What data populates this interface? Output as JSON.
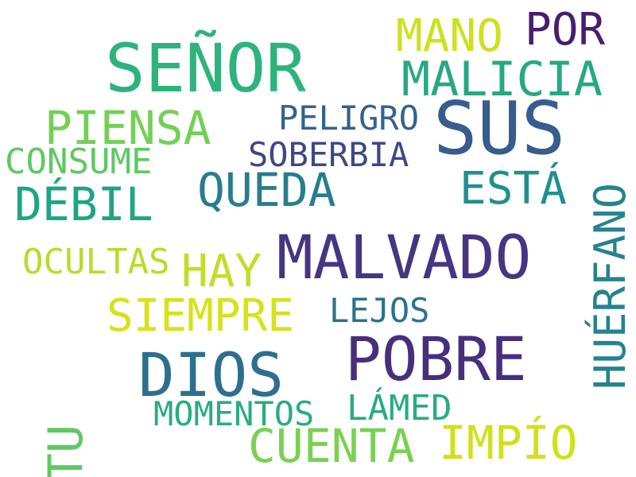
{
  "colors": {
    "background": "#ffffff",
    "dark_purple": "#481e6c",
    "purple": "#453582",
    "indigo": "#3f4788",
    "slate_blue": "#365d8d",
    "steel_blue": "#2d6f8e",
    "teal_blue": "#287d8e",
    "teal": "#21908d",
    "green": "#2eb37c",
    "light_green": "#5ec962",
    "lime": "#9bd33b",
    "yellow_green": "#bfdc25",
    "yellow": "#d7e219"
  },
  "words": [
    {
      "id": "senor",
      "text": "SEÑOR",
      "color": "#2eb37c"
    },
    {
      "id": "sus",
      "text": "SUS",
      "color": "#365d8d"
    },
    {
      "id": "malvado",
      "text": "MALVADO",
      "color": "#453582"
    },
    {
      "id": "pobre",
      "text": "POBRE",
      "color": "#472f7d"
    },
    {
      "id": "dios",
      "text": "DIOS",
      "color": "#2d6f8e"
    },
    {
      "id": "malicia",
      "text": "MALICIA",
      "color": "#27a884"
    },
    {
      "id": "mano",
      "text": "MANO",
      "color": "#cde11d"
    },
    {
      "id": "por",
      "text": "POR",
      "color": "#481e6c"
    },
    {
      "id": "piensa",
      "text": "PIENSA",
      "color": "#73d055"
    },
    {
      "id": "queda",
      "text": "QUEDA",
      "color": "#287d8e"
    },
    {
      "id": "esta",
      "text": "ESTÁ",
      "color": "#21908d"
    },
    {
      "id": "debil",
      "text": "DÉBIL",
      "color": "#20a386"
    },
    {
      "id": "siempre",
      "text": "SIEMPRE",
      "color": "#d7e219"
    },
    {
      "id": "hay",
      "text": "HAY",
      "color": "#c0de28"
    },
    {
      "id": "cuenta",
      "text": "CUENTA",
      "color": "#7ad151"
    },
    {
      "id": "impio",
      "text": "IMPÍO",
      "color": "#d0e11c"
    },
    {
      "id": "peligro",
      "text": "PELIGRO",
      "color": "#33638d"
    },
    {
      "id": "soberbia",
      "text": "SOBERBIA",
      "color": "#3f4788"
    },
    {
      "id": "consume",
      "text": "CONSUME",
      "color": "#5ec962"
    },
    {
      "id": "ocultas",
      "text": "OCULTAS",
      "color": "#b5de2b"
    },
    {
      "id": "lejos",
      "text": "LEJOS",
      "color": "#2c728e"
    },
    {
      "id": "momentos",
      "text": "MOMENTOS",
      "color": "#27ad81"
    },
    {
      "id": "lamed",
      "text": "LÁMED",
      "color": "#26ad81"
    },
    {
      "id": "tu",
      "text": "TU",
      "color": "#5ec962"
    },
    {
      "id": "huerfano",
      "text": "HUÉRFANO",
      "color": "#25838e"
    }
  ]
}
